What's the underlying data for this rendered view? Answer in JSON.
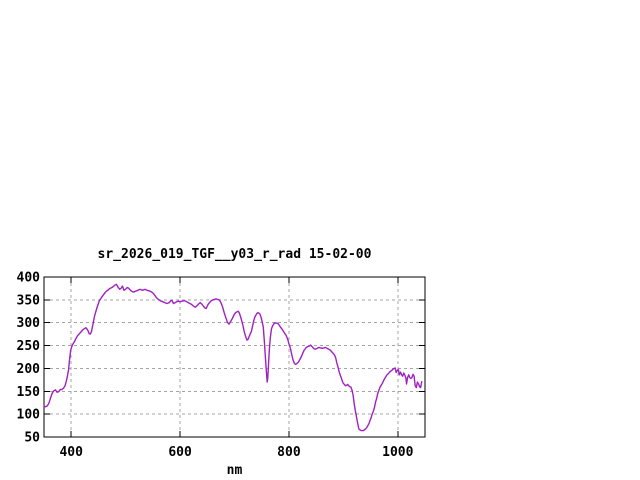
{
  "window": {
    "background": "#ffffff"
  },
  "chart_data": {
    "type": "line",
    "title": "sr_2026_019_TGF__y03_r_rad 15-02-00",
    "xlabel": "nm",
    "ylabel": "",
    "xlim": [
      350,
      1050
    ],
    "ylim": [
      50,
      400
    ],
    "x_ticks": [
      400,
      600,
      800,
      1000
    ],
    "y_ticks": [
      50,
      100,
      150,
      200,
      250,
      300,
      350,
      400
    ],
    "grid": true,
    "legend_position": "none",
    "line_color": "#a020c0",
    "grid_color": "#a5a5a5",
    "border_color": "#000000",
    "series": [
      {
        "name": "sr_2026_019_TGF__y03_r_rad",
        "x": [
          350,
          353,
          356,
          359,
          362,
          365,
          368,
          371,
          374,
          377,
          380,
          383,
          386,
          389,
          391,
          393,
          395,
          397,
          399,
          401,
          403,
          406,
          409,
          412,
          415,
          418,
          421,
          424,
          427,
          429,
          431,
          433,
          435,
          437,
          440,
          443,
          446,
          449,
          452,
          455,
          458,
          461,
          464,
          467,
          470,
          473,
          476,
          480,
          483,
          486,
          489,
          492,
          494,
          497,
          500,
          503,
          506,
          509,
          512,
          515,
          518,
          521,
          524,
          527,
          530,
          533,
          536,
          539,
          542,
          545,
          548,
          551,
          554,
          557,
          560,
          564,
          568,
          572,
          576,
          580,
          583,
          585,
          588,
          591,
          594,
          597,
          600,
          603,
          606,
          609,
          612,
          615,
          618,
          621,
          624,
          628,
          631,
          634,
          637,
          640,
          643,
          646,
          648,
          651,
          654,
          657,
          660,
          663,
          666,
          669,
          672,
          675,
          678,
          681,
          684,
          687,
          690,
          693,
          696,
          699,
          702,
          705,
          707,
          709,
          712,
          715,
          718,
          721,
          723,
          725,
          727,
          729,
          731,
          733,
          735,
          737,
          739,
          741,
          743,
          745,
          747,
          749,
          751,
          753,
          755,
          757,
          759,
          760,
          761,
          762,
          764,
          766,
          768,
          770,
          772,
          774,
          776,
          778,
          780,
          782,
          784,
          786,
          789,
          792,
          795,
          798,
          800,
          802,
          804,
          806,
          808,
          810,
          812,
          814,
          816,
          818,
          820,
          822,
          824,
          826,
          828,
          830,
          832,
          835,
          838,
          840,
          843,
          846,
          849,
          852,
          855,
          858,
          861,
          864,
          867,
          870,
          873,
          876,
          879,
          882,
          884,
          886,
          888,
          890,
          892,
          894,
          896,
          898,
          900,
          902,
          904,
          906,
          908,
          910,
          912,
          914,
          916,
          918,
          920,
          922,
          924,
          926,
          928,
          929,
          931,
          933,
          935,
          937,
          939,
          941,
          943,
          945,
          947,
          949,
          951,
          953,
          955,
          957,
          959,
          961,
          963,
          965,
          967,
          969,
          971,
          973,
          975,
          977,
          979,
          981,
          983,
          985,
          987,
          989,
          991,
          993,
          995,
          997,
          999,
          1001,
          1003,
          1005,
          1007,
          1009,
          1011,
          1013,
          1015,
          1016,
          1018,
          1020,
          1022,
          1024,
          1026,
          1028,
          1030,
          1032,
          1034,
          1036,
          1038,
          1040,
          1042,
          1044
        ],
        "y": [
          118,
          116,
          118,
          124,
          135,
          146,
          151,
          153,
          148,
          149,
          154,
          154,
          157,
          163,
          172,
          183,
          196,
          220,
          240,
          248,
          253,
          259,
          266,
          272,
          276,
          280,
          284,
          287,
          289,
          286,
          282,
          276,
          275,
          280,
          297,
          315,
          328,
          339,
          349,
          354,
          359,
          364,
          368,
          371,
          374,
          376,
          378,
          382,
          384,
          378,
          373,
          376,
          380,
          371,
          373,
          377,
          375,
          371,
          368,
          367,
          369,
          370,
          372,
          373,
          371,
          372,
          373,
          371,
          370,
          369,
          367,
          364,
          359,
          354,
          351,
          348,
          346,
          344,
          342,
          344,
          348,
          349,
          342,
          344,
          346,
          347,
          346,
          347,
          348,
          348,
          346,
          344,
          342,
          340,
          337,
          334,
          337,
          341,
          344,
          341,
          336,
          332,
          331,
          339,
          344,
          348,
          350,
          351,
          352,
          351,
          350,
          344,
          335,
          322,
          311,
          301,
          297,
          303,
          309,
          317,
          322,
          324,
          325,
          321,
          310,
          296,
          280,
          268,
          262,
          264,
          270,
          276,
          281,
          292,
          303,
          311,
          316,
          320,
          322,
          321,
          318,
          311,
          301,
          290,
          258,
          221,
          186,
          170,
          178,
          196,
          240,
          269,
          287,
          293,
          297,
          300,
          299,
          299,
          298,
          295,
          291,
          288,
          283,
          277,
          272,
          263,
          254,
          247,
          237,
          226,
          217,
          211,
          209,
          210,
          212,
          215,
          219,
          224,
          229,
          235,
          240,
          243,
          246,
          248,
          249,
          251,
          247,
          243,
          242,
          244,
          246,
          245,
          244,
          245,
          246,
          244,
          242,
          240,
          236,
          232,
          229,
          223,
          212,
          204,
          194,
          186,
          180,
          172,
          167,
          165,
          162,
          163,
          165,
          162,
          160,
          159,
          152,
          140,
          123,
          108,
          95,
          82,
          70,
          67,
          65,
          64,
          64,
          64,
          66,
          68,
          71,
          75,
          79,
          86,
          92,
          100,
          106,
          114,
          126,
          134,
          144,
          151,
          158,
          162,
          166,
          171,
          176,
          180,
          184,
          187,
          189,
          192,
          194,
          196,
          198,
          200,
          201,
          191,
          195,
          198,
          186,
          192,
          186,
          183,
          190,
          185,
          179,
          166,
          180,
          186,
          180,
          178,
          180,
          187,
          183,
          162,
          158,
          170,
          166,
          160,
          158,
          171
        ]
      }
    ]
  }
}
